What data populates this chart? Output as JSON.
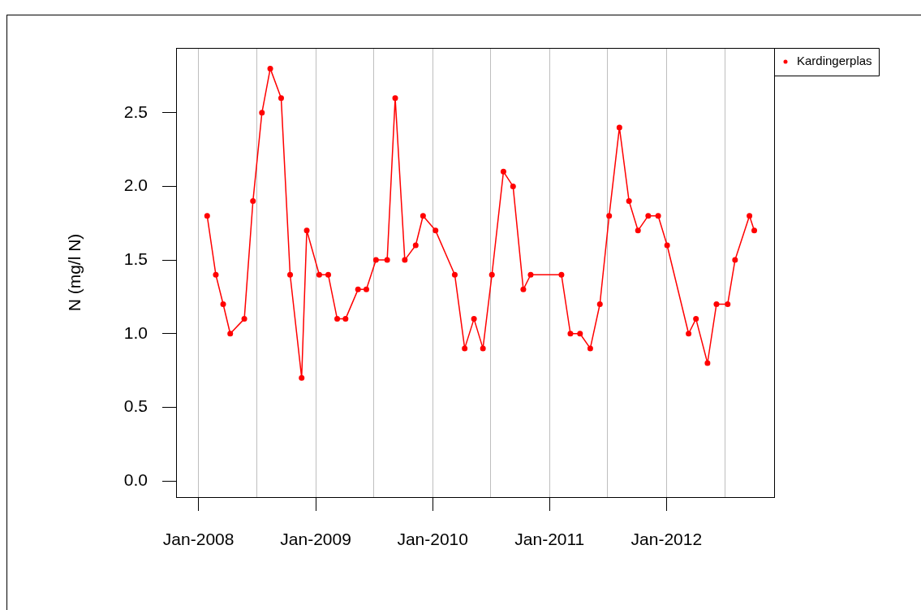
{
  "chart_data": {
    "type": "line",
    "ylabel": "N (mg/l N)",
    "x": [
      "2008-01-28",
      "2008-02-24",
      "2008-03-18",
      "2008-04-09",
      "2008-05-23",
      "2008-06-19",
      "2008-07-17",
      "2008-08-12",
      "2008-09-15",
      "2008-10-13",
      "2008-11-18",
      "2008-12-04",
      "2009-01-12",
      "2009-02-09",
      "2009-03-09",
      "2009-04-04",
      "2009-05-13",
      "2009-06-08",
      "2009-07-08",
      "2009-08-12",
      "2009-09-06",
      "2009-10-06",
      "2009-11-09",
      "2009-12-02",
      "2010-01-10",
      "2010-03-11",
      "2010-04-11",
      "2010-05-10",
      "2010-06-07",
      "2010-07-05",
      "2010-08-10",
      "2010-09-09",
      "2010-10-11",
      "2010-11-03",
      "2011-02-07",
      "2011-03-07",
      "2011-04-06",
      "2011-05-08",
      "2011-06-07",
      "2011-07-06",
      "2011-08-07",
      "2011-09-06",
      "2011-10-04",
      "2011-11-05",
      "2011-12-06",
      "2012-01-03",
      "2012-03-10",
      "2012-04-02",
      "2012-05-08",
      "2012-06-05",
      "2012-07-10",
      "2012-08-02",
      "2012-09-16",
      "2012-10-01"
    ],
    "series": [
      {
        "name": "Kardingerplas",
        "color": "#ff0000",
        "values": [
          1.8,
          1.4,
          1.2,
          1.0,
          1.1,
          1.9,
          2.5,
          2.8,
          2.6,
          1.4,
          0.7,
          1.7,
          1.4,
          1.4,
          1.1,
          1.1,
          1.3,
          1.3,
          1.5,
          1.5,
          2.6,
          1.5,
          1.6,
          1.8,
          1.7,
          1.4,
          0.9,
          1.1,
          0.9,
          1.4,
          2.1,
          2.0,
          1.3,
          1.4,
          1.4,
          1.0,
          1.0,
          0.9,
          1.2,
          1.8,
          2.4,
          1.9,
          1.7,
          1.8,
          1.8,
          1.6,
          1.0,
          1.1,
          0.8,
          1.2,
          1.2,
          1.5,
          1.8,
          1.7
        ]
      }
    ],
    "xlim": [
      "2007-10-23",
      "2012-12-02"
    ],
    "xticks": [
      {
        "value": "2008-01-01",
        "label": "Jan-2008"
      },
      {
        "value": "2008-07-01",
        "label": null
      },
      {
        "value": "2009-01-01",
        "label": "Jan-2009"
      },
      {
        "value": "2009-07-01",
        "label": null
      },
      {
        "value": "2010-01-01",
        "label": "Jan-2010"
      },
      {
        "value": "2010-07-01",
        "label": null
      },
      {
        "value": "2011-01-01",
        "label": "Jan-2011"
      },
      {
        "value": "2011-07-01",
        "label": null
      },
      {
        "value": "2012-01-01",
        "label": "Jan-2012"
      },
      {
        "value": "2012-07-01",
        "label": null
      }
    ],
    "ylim": [
      -0.11,
      2.94
    ],
    "yticks": [
      {
        "value": 0,
        "label": "0.0"
      },
      0.5,
      {
        "value": 1,
        "label": "1.0"
      },
      1.5,
      {
        "value": 2,
        "label": "2.0"
      },
      2.5
    ],
    "grid": "x",
    "legend": "top right",
    "marker": "circle",
    "line_style": "solid"
  }
}
